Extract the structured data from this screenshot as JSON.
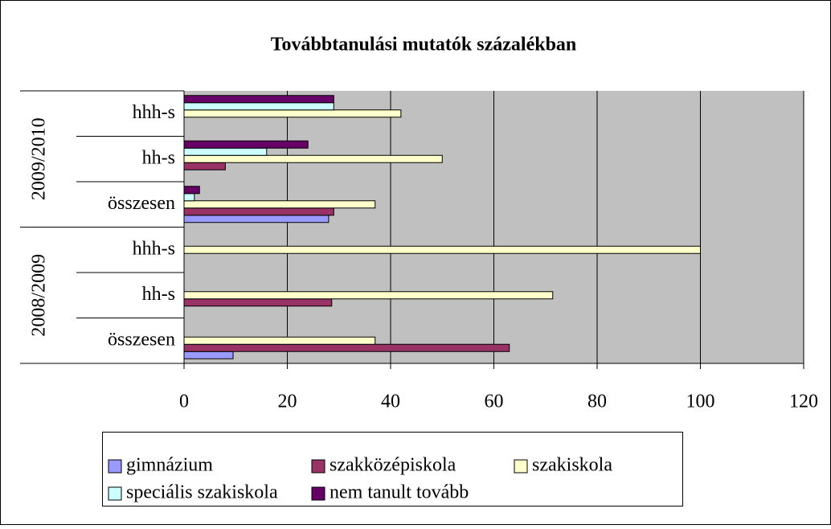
{
  "chart_data": {
    "type": "hbar",
    "title": "Továbbtanulási mutatók százalékban",
    "categories": [
      "összesen",
      "hh-s",
      "hhh-s",
      "összesen",
      "hh-s",
      "hhh-s"
    ],
    "category_groups": [
      {
        "name": "2008/2009",
        "size": 3
      },
      {
        "name": "2009/2010",
        "size": 3
      }
    ],
    "series": [
      {
        "name": "gimnázium",
        "color": "#9999ff",
        "values": [
          9.5,
          0,
          0,
          28,
          0,
          0
        ]
      },
      {
        "name": "szakközépiskola",
        "color": "#993366",
        "values": [
          63,
          28.6,
          0,
          29,
          8,
          0
        ]
      },
      {
        "name": "szakiskola",
        "color": "#ffffcc",
        "values": [
          37,
          71.4,
          100,
          37,
          50,
          42
        ]
      },
      {
        "name": "speciális szakiskola",
        "color": "#ccffff",
        "values": [
          0,
          0,
          0,
          2,
          16,
          29
        ]
      },
      {
        "name": "nem tanult tovább",
        "color": "#660066",
        "values": [
          0,
          0,
          0,
          3,
          24,
          29
        ]
      }
    ],
    "xlim": [
      0,
      120
    ],
    "xticks": [
      0,
      20,
      40,
      60,
      80,
      100,
      120
    ],
    "grid": true
  }
}
